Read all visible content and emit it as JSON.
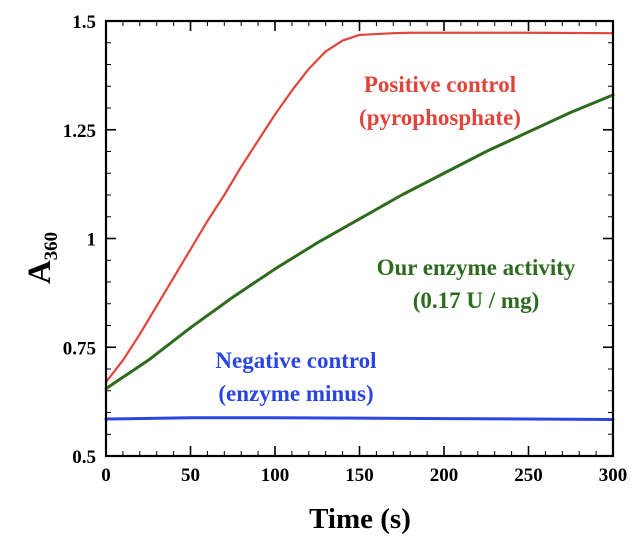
{
  "chart_data": {
    "type": "line",
    "xlabel": "Time (s)",
    "ylabel_main": "A",
    "ylabel_sub": "360",
    "xlim": [
      0,
      300
    ],
    "ylim": [
      0.5,
      1.5
    ],
    "x_ticks": [
      0,
      50,
      100,
      150,
      200,
      250,
      300
    ],
    "x_tick_labels": [
      "0",
      "50",
      "100",
      "150",
      "200",
      "250",
      "300"
    ],
    "y_ticks": [
      0.5,
      0.75,
      1,
      1.25,
      1.5
    ],
    "y_tick_labels": [
      "0.5",
      "0.75",
      "1",
      "1.25",
      "1.5"
    ],
    "x_minor_step": 10,
    "y_minor_step": 0.05,
    "grid": false,
    "series": [
      {
        "key": "positive",
        "color": "#e0443a",
        "annotation": [
          "Positive control",
          "(pyrophosphate)"
        ],
        "x": [
          0,
          10,
          20,
          30,
          40,
          50,
          60,
          70,
          80,
          90,
          100,
          110,
          120,
          130,
          140,
          150,
          160,
          170,
          180,
          200,
          250,
          300
        ],
        "y": [
          0.67,
          0.72,
          0.78,
          0.845,
          0.91,
          0.975,
          1.04,
          1.1,
          1.165,
          1.225,
          1.285,
          1.34,
          1.39,
          1.43,
          1.455,
          1.468,
          1.47,
          1.472,
          1.473,
          1.473,
          1.473,
          1.472
        ]
      },
      {
        "key": "enzyme",
        "color": "#2e6b1e",
        "annotation": [
          "Our enzyme activity",
          "(0.17 U / mg)"
        ],
        "x": [
          0,
          25,
          50,
          75,
          100,
          125,
          150,
          175,
          200,
          225,
          250,
          275,
          300
        ],
        "y": [
          0.655,
          0.72,
          0.795,
          0.865,
          0.93,
          0.99,
          1.045,
          1.1,
          1.15,
          1.2,
          1.245,
          1.29,
          1.33
        ]
      },
      {
        "key": "negative",
        "color": "#2b45e0",
        "annotation": [
          "Negative control",
          "(enzyme minus)"
        ],
        "x": [
          0,
          50,
          100,
          150,
          200,
          250,
          300
        ],
        "y": [
          0.585,
          0.588,
          0.588,
          0.587,
          0.586,
          0.585,
          0.584
        ]
      }
    ]
  }
}
